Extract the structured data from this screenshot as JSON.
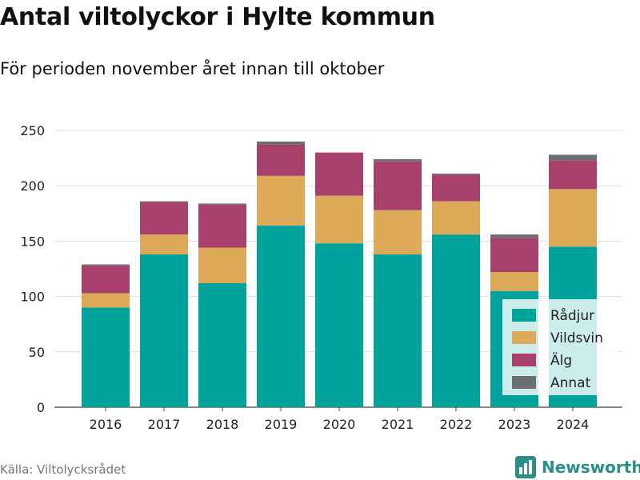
{
  "title": "Antal viltolyckor i Hylte kommun",
  "subtitle": "För perioden november året innan till oktober",
  "source": "Källa: Viltolycksrådet",
  "brand": {
    "name": "Newsworthy",
    "logo_icon": "bar-chart-logo-icon"
  },
  "colors": {
    "Rådjur": "#00a39b",
    "Vildsvin": "#dcaa58",
    "Älg": "#a8406c",
    "Annat": "#6d7073",
    "brand": "#2a8f86"
  },
  "chart_data": {
    "type": "bar",
    "stacked": true,
    "title": "Antal viltolyckor i Hylte kommun",
    "subtitle": "För perioden november året innan till oktober",
    "xlabel": "",
    "ylabel": "",
    "categories": [
      "2016",
      "2017",
      "2018",
      "2019",
      "2020",
      "2021",
      "2022",
      "2023",
      "2024"
    ],
    "ylim": [
      0,
      250
    ],
    "yticks": [
      0,
      50,
      100,
      150,
      200,
      250
    ],
    "grid": true,
    "legend_position": "bottom-right",
    "series": [
      {
        "name": "Rådjur",
        "color": "#00a39b",
        "values": [
          90,
          138,
          112,
          164,
          148,
          138,
          156,
          105,
          145
        ]
      },
      {
        "name": "Vildsvin",
        "color": "#dcaa58",
        "values": [
          13,
          18,
          32,
          45,
          43,
          40,
          30,
          17,
          52
        ]
      },
      {
        "name": "Älg",
        "color": "#a8406c",
        "values": [
          25,
          29,
          39,
          28,
          39,
          44,
          24,
          31,
          26
        ]
      },
      {
        "name": "Annat",
        "color": "#6d7073",
        "values": [
          1,
          1,
          1,
          3,
          0,
          2,
          1,
          3,
          5
        ]
      }
    ]
  }
}
